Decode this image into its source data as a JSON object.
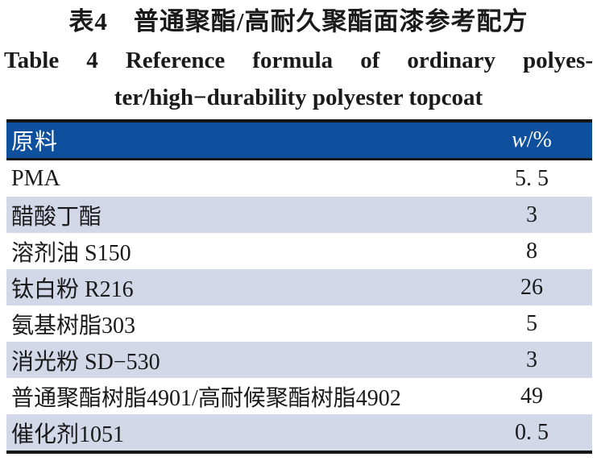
{
  "page": {
    "title_zh": "表4　普通聚酯/高耐久聚酯面漆参考配方",
    "title_en_line1": "Table 4 Reference formula of ordinary polyes-",
    "title_en_line2": "ter/high−durability polyester topcoat"
  },
  "table": {
    "header": {
      "material_label": "原料",
      "value_symbol": "w",
      "value_unit": "/%"
    },
    "rows": [
      {
        "material": "PMA",
        "value": "5. 5"
      },
      {
        "material": "醋酸丁酯",
        "value": "3"
      },
      {
        "material": "溶剂油 S150",
        "value": "8"
      },
      {
        "material": "钛白粉 R216",
        "value": "26"
      },
      {
        "material": "氨基树脂303",
        "value": "5"
      },
      {
        "material": "消光粉 SD−530",
        "value": "3"
      },
      {
        "material": "普通聚酯树脂4901/高耐候聚酯树脂4902",
        "value": "49"
      },
      {
        "material": "催化剂1051",
        "value": "0. 5"
      }
    ],
    "colors": {
      "header_bg": "#0e4f9e",
      "stripe_bg": "#d3d8e9",
      "border": "#161616"
    }
  }
}
